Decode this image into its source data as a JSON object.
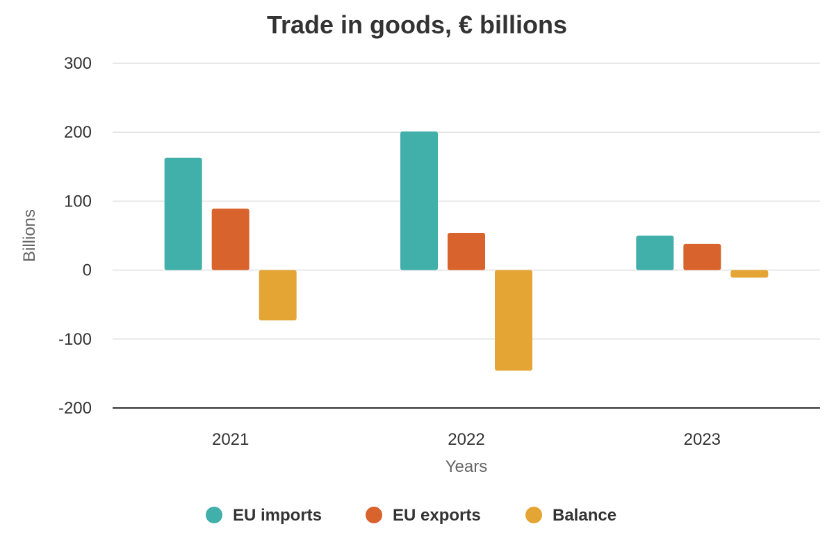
{
  "chart_data": {
    "type": "bar",
    "title": "Trade in goods, € billions",
    "xlabel": "Years",
    "ylabel": "Billions",
    "categories": [
      "2021",
      "2022",
      "2023"
    ],
    "series": [
      {
        "name": "EU imports",
        "color": "#42b0aa",
        "values": [
          163,
          201,
          50
        ]
      },
      {
        "name": "EU exports",
        "color": "#d9632d",
        "values": [
          89,
          54,
          38
        ]
      },
      {
        "name": "Balance",
        "color": "#e4a534",
        "values": [
          -73,
          -146,
          -11
        ]
      }
    ],
    "ylim": [
      -200,
      300
    ],
    "yticks": [
      300,
      200,
      100,
      0,
      -100,
      -200
    ],
    "ytick_labels": [
      "300",
      "200",
      "100",
      "0",
      "-100",
      "-200"
    ],
    "grid": true,
    "legend": "bottom-center"
  }
}
